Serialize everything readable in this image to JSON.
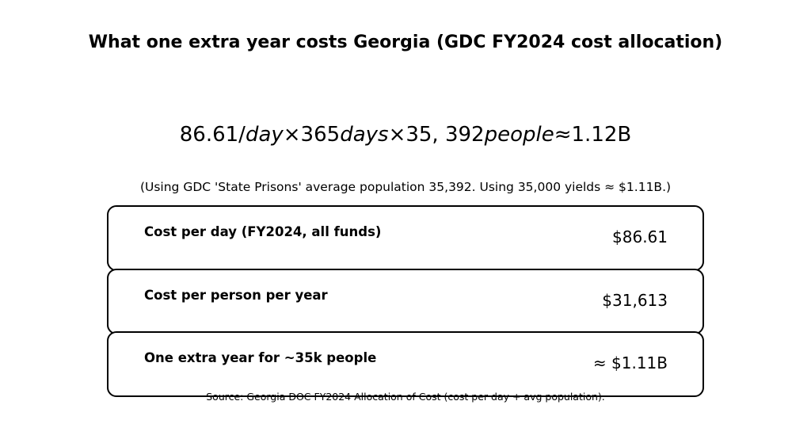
{
  "title": "What one extra year costs Georgia (GDC FY2024 cost allocation)",
  "formula": [
    "86.61/",
    "day",
    "×365",
    "days",
    "×35, 392",
    "people",
    "≈1.12B"
  ],
  "note": "(Using GDC 'State Prisons' average population 35,392. Using 35,000 yields ≈ $1.11B.)",
  "rows": [
    {
      "label": "Cost per day (FY2024, all funds)",
      "value": "$86.61"
    },
    {
      "label": "Cost per person per year",
      "value": "$31,613"
    },
    {
      "label": "One extra year for ~35k people",
      "value": "≈ $1.11B"
    }
  ],
  "source": "Source: Georgia DOC FY2024 Allocation of Cost (cost per day + avg population)."
}
